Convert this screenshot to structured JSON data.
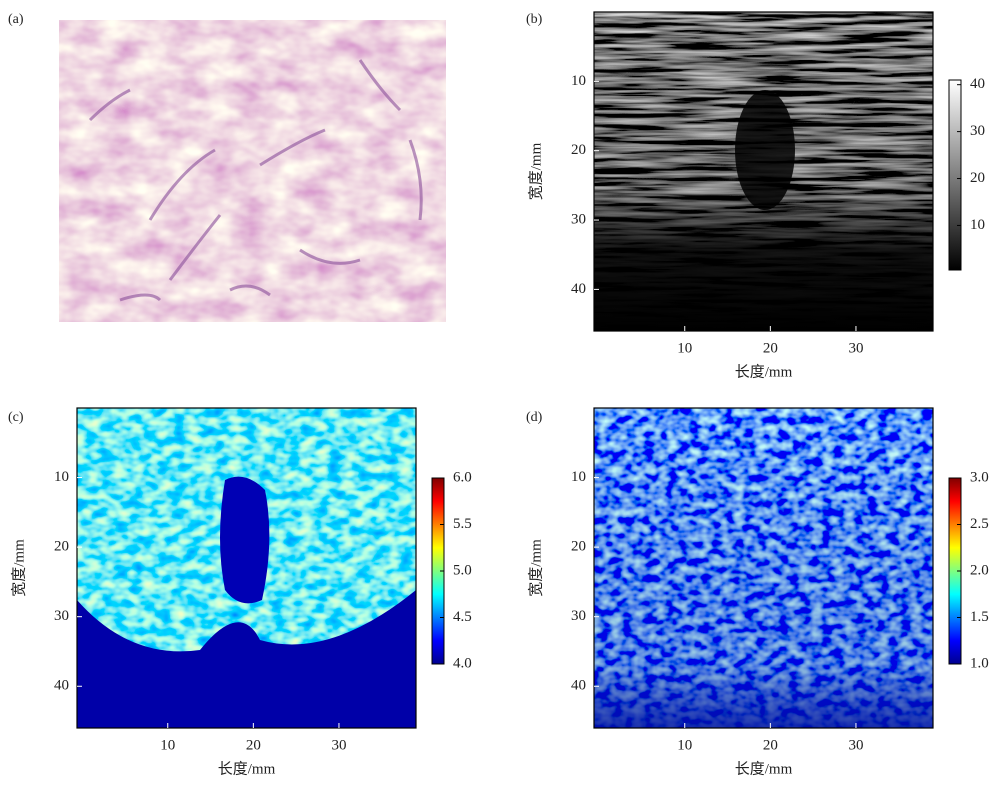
{
  "chart_data": [
    {
      "type": "image",
      "label": "(a)"
    },
    {
      "type": "heatmap",
      "label": "(b)",
      "xlabel": "长度/mm",
      "ylabel": "宽度/mm",
      "xlim": [
        -0.6,
        39
      ],
      "ylim": [
        0,
        46
      ],
      "xticks": [
        10,
        20,
        30
      ],
      "yticks": [
        10,
        20,
        30,
        40
      ],
      "colorbar": {
        "colormap": "gray",
        "lim": [
          0.5,
          41
        ],
        "ticks": [
          10,
          20,
          30,
          40
        ]
      }
    },
    {
      "type": "heatmap",
      "label": "(c)",
      "xlabel": "长度/mm",
      "ylabel": "宽度/mm",
      "xlim": [
        -0.6,
        39
      ],
      "ylim": [
        0,
        46
      ],
      "xticks": [
        10,
        20,
        30
      ],
      "yticks": [
        10,
        20,
        30,
        40
      ],
      "colorbar": {
        "colormap": "jet",
        "lim": [
          4,
          6
        ],
        "ticks": [
          {
            "value": 4,
            "label": "4.0"
          },
          {
            "value": 4.5,
            "label": "4.5"
          },
          {
            "value": 5,
            "label": "5.0"
          },
          {
            "value": 5.5,
            "label": "5.5"
          },
          {
            "value": 6,
            "label": "6.0"
          }
        ]
      }
    },
    {
      "type": "heatmap",
      "label": "(d)",
      "xlabel": "长度/mm",
      "ylabel": "宽度/mm",
      "xlim": [
        -0.6,
        39
      ],
      "ylim": [
        0,
        46
      ],
      "xticks": [
        10,
        20,
        30
      ],
      "yticks": [
        10,
        20,
        30,
        40
      ],
      "colorbar": {
        "colormap": "jet",
        "lim": [
          1,
          3
        ],
        "ticks": [
          {
            "value": 1,
            "label": "1.0"
          },
          {
            "value": 1.5,
            "label": "1.5"
          },
          {
            "value": 2,
            "label": "2.0"
          },
          {
            "value": 2.5,
            "label": "2.5"
          },
          {
            "value": 3,
            "label": "3.0"
          }
        ]
      }
    }
  ]
}
